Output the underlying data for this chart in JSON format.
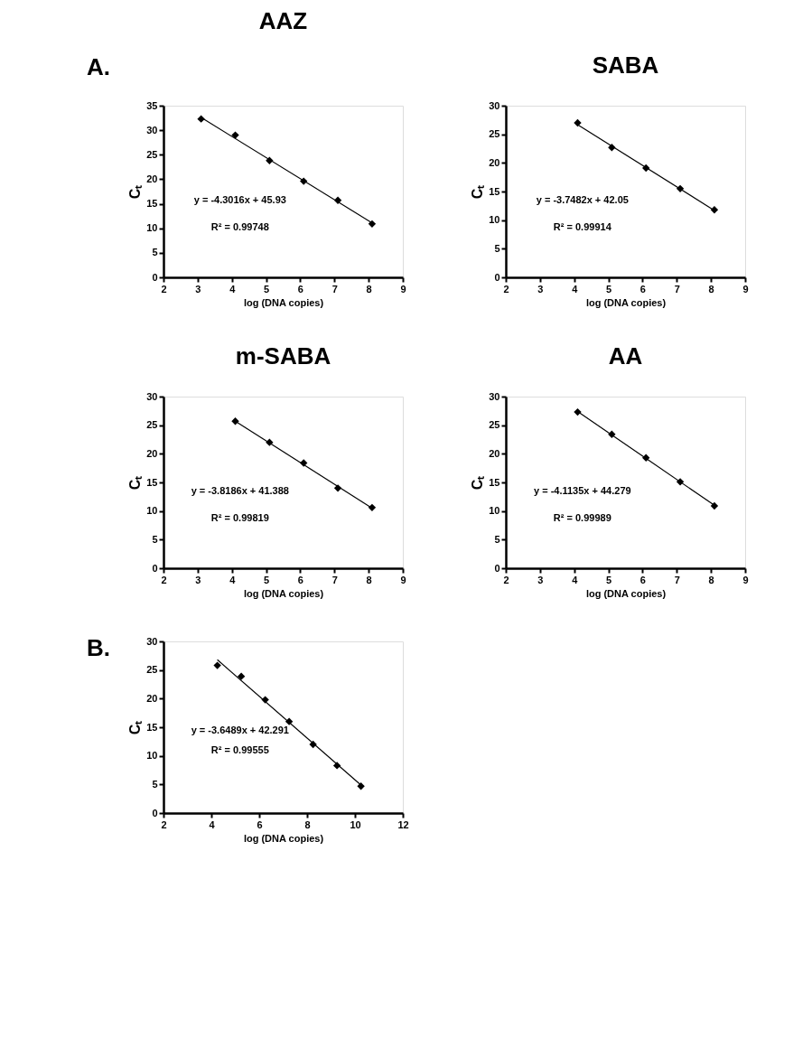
{
  "chart_data": [
    {
      "type": "scatter",
      "title": "AAZ",
      "xlabel": "log (DNA copies)",
      "ylabel": "Cₜ",
      "xlim": [
        2,
        9
      ],
      "xticks": [
        2,
        3,
        4,
        5,
        6,
        7,
        8,
        9
      ],
      "ylim": [
        0,
        35
      ],
      "yticks": [
        0,
        5,
        10,
        15,
        20,
        25,
        30,
        35
      ],
      "grid": false,
      "marker": "diamond",
      "series": [
        {
          "color": "#000000",
          "x": [
            3.1,
            4.1,
            5.1,
            6.1,
            7.1,
            8.1
          ],
          "values": [
            32.3,
            29.0,
            23.8,
            19.6,
            15.7,
            10.9
          ]
        },
        {
          "type": "line",
          "color": "#000000",
          "marker": "none",
          "x": [
            3.1,
            8.1
          ],
          "values": [
            32.6,
            11.1
          ]
        }
      ],
      "annotations": [
        "y = -4.3016x + 45.93",
        "R² = 0.99748",
        "A."
      ]
    },
    {
      "type": "scatter",
      "title": "SABA",
      "xlabel": "log (DNA copies)",
      "ylabel": "Cₜ",
      "xlim": [
        2,
        9
      ],
      "xticks": [
        2,
        3,
        4,
        5,
        6,
        7,
        8,
        9
      ],
      "ylim": [
        0,
        30
      ],
      "yticks": [
        0,
        5,
        10,
        15,
        20,
        25,
        30
      ],
      "grid": false,
      "marker": "diamond",
      "series": [
        {
          "color": "#000000",
          "x": [
            4.1,
            5.1,
            6.1,
            7.1,
            8.1
          ],
          "values": [
            27.0,
            22.7,
            19.1,
            15.5,
            11.8
          ]
        },
        {
          "type": "line",
          "color": "#000000",
          "marker": "none",
          "x": [
            4.1,
            8.1
          ],
          "values": [
            26.7,
            11.7
          ]
        }
      ],
      "annotations": [
        "y = -3.7482x + 42.05",
        "R² = 0.99914"
      ]
    },
    {
      "type": "scatter",
      "title": "m-SABA",
      "xlabel": "log (DNA copies)",
      "ylabel": "Cₜ",
      "xlim": [
        2,
        9
      ],
      "xticks": [
        2,
        3,
        4,
        5,
        6,
        7,
        8,
        9
      ],
      "ylim": [
        0,
        30
      ],
      "yticks": [
        0,
        5,
        10,
        15,
        20,
        25,
        30
      ],
      "grid": false,
      "marker": "diamond",
      "series": [
        {
          "color": "#000000",
          "x": [
            4.1,
            5.1,
            6.1,
            7.1,
            8.1
          ],
          "values": [
            25.7,
            22.0,
            18.4,
            14.0,
            10.6
          ]
        },
        {
          "type": "line",
          "color": "#000000",
          "marker": "none",
          "x": [
            4.1,
            8.1
          ],
          "values": [
            25.7,
            10.5
          ]
        }
      ],
      "annotations": [
        "y = -3.8186x + 41.388",
        "R² = 0.99819"
      ]
    },
    {
      "type": "scatter",
      "title": "AA",
      "xlabel": "log (DNA copies)",
      "ylabel": "Cₜ",
      "xlim": [
        2,
        9
      ],
      "xticks": [
        2,
        3,
        4,
        5,
        6,
        7,
        8,
        9
      ],
      "ylim": [
        0,
        30
      ],
      "yticks": [
        0,
        5,
        10,
        15,
        20,
        25,
        30
      ],
      "grid": false,
      "marker": "diamond",
      "series": [
        {
          "color": "#000000",
          "x": [
            4.1,
            5.1,
            6.1,
            7.1,
            8.1
          ],
          "values": [
            27.3,
            23.4,
            19.3,
            15.1,
            10.9
          ]
        },
        {
          "type": "line",
          "color": "#000000",
          "marker": "none",
          "x": [
            4.1,
            8.1
          ],
          "values": [
            27.4,
            11.0
          ]
        }
      ],
      "annotations": [
        "y = -4.1135x + 44.279",
        "R² = 0.99989"
      ]
    },
    {
      "type": "scatter",
      "xlabel": "log (DNA copies)",
      "ylabel": "Cₜ",
      "xlim": [
        2,
        12
      ],
      "xticks": [
        2,
        4,
        6,
        8,
        10,
        12
      ],
      "ylim": [
        0,
        30
      ],
      "yticks": [
        0,
        5,
        10,
        15,
        20,
        25,
        30
      ],
      "grid": false,
      "marker": "diamond",
      "series": [
        {
          "color": "#000000",
          "x": [
            4.25,
            5.25,
            6.25,
            7.25,
            8.25,
            9.25,
            10.25
          ],
          "values": [
            25.8,
            23.9,
            19.8,
            16.0,
            12.0,
            8.3,
            4.7
          ]
        },
        {
          "type": "line",
          "color": "#000000",
          "marker": "none",
          "x": [
            4.25,
            10.25
          ],
          "values": [
            26.8,
            4.9
          ]
        }
      ],
      "annotations": [
        "y = -3.6489x + 42.291",
        "R² = 0.99555",
        "B."
      ]
    }
  ]
}
